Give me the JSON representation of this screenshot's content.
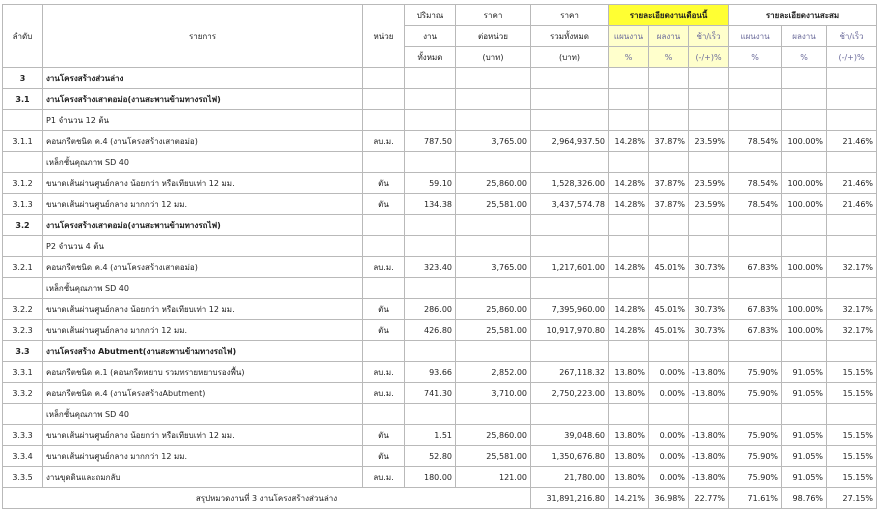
{
  "header": {
    "no": "ลำดับ",
    "item": "รายการ",
    "unit": "หน่วย",
    "qty": [
      "ปริมาณ",
      "งาน",
      "ทั้งหมด"
    ],
    "unit_price": [
      "ราคา",
      "ต่อหน่วย",
      "(บาท)"
    ],
    "total": [
      "ราคา",
      "รวมทั้งหมด",
      "(บาท)"
    ],
    "groups": [
      {
        "title": "รายละเอียดงานเดือนนี้",
        "columns": [
          [
            "แผนงาน",
            "%"
          ],
          [
            "ผลงาน",
            "%"
          ],
          [
            "ช้า/เร็ว",
            "(-/+)%"
          ]
        ]
      },
      {
        "title": "รายละเอียดงานสะสม",
        "columns": [
          [
            "แผนงาน",
            "%"
          ],
          [
            "ผลงาน",
            "%"
          ],
          [
            "ช้า/เร็ว",
            "(-/+)%"
          ]
        ]
      }
    ]
  },
  "rows": [
    {
      "bold": true,
      "cells": [
        "3",
        "งานโครงสร้างส่วนล่าง",
        null,
        null,
        null,
        null,
        null,
        null,
        null,
        null,
        null,
        null
      ]
    },
    {
      "bold": true,
      "cells": [
        "3.1",
        "งานโครงสร้างเสาตอม่อ(งานสะพานข้ามทางรถไฟ)",
        null,
        null,
        null,
        null,
        null,
        null,
        null,
        null,
        null,
        null
      ]
    },
    {
      "cells": [
        null,
        "P1 จำนวน 12 ต้น",
        null,
        null,
        null,
        null,
        null,
        null,
        null,
        null,
        null,
        null
      ]
    },
    {
      "cells": [
        "3.1.1",
        "คอนกรีตชนิด ค.4 (งานโครงสร้างเสาตอม่อ)",
        "ลบ.ม.",
        "787.50",
        "3,765.00",
        "2,964,937.50",
        "14.28%",
        "37.87%",
        "23.59%",
        "78.54%",
        "100.00%",
        "21.46%"
      ]
    },
    {
      "cells": [
        null,
        "เหล็กชั้นคุณภาพ SD 40",
        null,
        null,
        null,
        null,
        null,
        null,
        null,
        null,
        null,
        null
      ]
    },
    {
      "cells": [
        "3.1.2",
        "ขนาดเส้นผ่านศูนย์กลาง น้อยกว่า หรือเทียบเท่า 12 มม.",
        "ตัน",
        "59.10",
        "25,860.00",
        "1,528,326.00",
        "14.28%",
        "37.87%",
        "23.59%",
        "78.54%",
        "100.00%",
        "21.46%"
      ]
    },
    {
      "cells": [
        "3.1.3",
        "ขนาดเส้นผ่านศูนย์กลาง มากกว่า 12 มม.",
        "ตัน",
        "134.38",
        "25,581.00",
        "3,437,574.78",
        "14.28%",
        "37.87%",
        "23.59%",
        "78.54%",
        "100.00%",
        "21.46%"
      ]
    },
    {
      "bold": true,
      "cells": [
        "3.2",
        "งานโครงสร้างเสาตอม่อ(งานสะพานข้ามทางรถไฟ)",
        null,
        null,
        null,
        null,
        null,
        null,
        null,
        null,
        null,
        null
      ]
    },
    {
      "cells": [
        null,
        "P2 จำนวน 4 ต้น",
        null,
        null,
        null,
        null,
        null,
        null,
        null,
        null,
        null,
        null
      ]
    },
    {
      "cells": [
        "3.2.1",
        "คอนกรีตชนิด ค.4 (งานโครงสร้างเสาตอม่อ)",
        "ลบ.ม.",
        "323.40",
        "3,765.00",
        "1,217,601.00",
        "14.28%",
        "45.01%",
        "30.73%",
        "67.83%",
        "100.00%",
        "32.17%"
      ]
    },
    {
      "cells": [
        null,
        "เหล็กชั้นคุณภาพ SD 40",
        null,
        null,
        null,
        null,
        null,
        null,
        null,
        null,
        null,
        null
      ]
    },
    {
      "cells": [
        "3.2.2",
        "ขนาดเส้นผ่านศูนย์กลาง น้อยกว่า หรือเทียบเท่า 12 มม.",
        "ตัน",
        "286.00",
        "25,860.00",
        "7,395,960.00",
        "14.28%",
        "45.01%",
        "30.73%",
        "67.83%",
        "100.00%",
        "32.17%"
      ]
    },
    {
      "cells": [
        "3.2.3",
        "ขนาดเส้นผ่านศูนย์กลาง มากกว่า 12 มม.",
        "ตัน",
        "426.80",
        "25,581.00",
        "10,917,970.80",
        "14.28%",
        "45.01%",
        "30.73%",
        "67.83%",
        "100.00%",
        "32.17%"
      ]
    },
    {
      "bold": true,
      "cells": [
        "3.3",
        "งานโครงสร้าง Abutment(งานสะพานข้ามทางรถไฟ)",
        null,
        null,
        null,
        null,
        null,
        null,
        null,
        null,
        null,
        null
      ]
    },
    {
      "cells": [
        "3.3.1",
        "คอนกรีตชนิด ค.1 (คอนกรีตหยาบ รวมทรายหยาบรองพื้น)",
        "ลบ.ม.",
        "93.66",
        "2,852.00",
        "267,118.32",
        "13.80%",
        "0.00%",
        "-13.80%",
        "75.90%",
        "91.05%",
        "15.15%"
      ]
    },
    {
      "cells": [
        "3.3.2",
        "คอนกรีตชนิด ค.4 (งานโครงสร้างAbutment)",
        "ลบ.ม.",
        "741.30",
        "3,710.00",
        "2,750,223.00",
        "13.80%",
        "0.00%",
        "-13.80%",
        "75.90%",
        "91.05%",
        "15.15%"
      ]
    },
    {
      "cells": [
        null,
        "เหล็กชั้นคุณภาพ SD 40",
        null,
        null,
        null,
        null,
        null,
        null,
        null,
        null,
        null,
        null
      ]
    },
    {
      "cells": [
        "3.3.3",
        "ขนาดเส้นผ่านศูนย์กลาง น้อยกว่า หรือเทียบเท่า 12 มม.",
        "ตัน",
        "1.51",
        "25,860.00",
        "39,048.60",
        "13.80%",
        "0.00%",
        "-13.80%",
        "75.90%",
        "91.05%",
        "15.15%"
      ]
    },
    {
      "cells": [
        "3.3.4",
        "ขนาดเส้นผ่านศูนย์กลาง มากกว่า 12 มม.",
        "ตัน",
        "52.80",
        "25,581.00",
        "1,350,676.80",
        "13.80%",
        "0.00%",
        "-13.80%",
        "75.90%",
        "91.05%",
        "15.15%"
      ]
    },
    {
      "cells": [
        "3.3.5",
        "งานขุดดินและถมกลับ",
        "ลบ.ม.",
        "180.00",
        "121.00",
        "21,780.00",
        "13.80%",
        "0.00%",
        "-13.80%",
        "75.90%",
        "91.05%",
        "15.15%"
      ]
    }
  ],
  "summary": {
    "label": "สรุปหมวดงานที่ 3 งานโครงสร้างส่วนล่าง",
    "total": "31,891,216.80",
    "percents": [
      "14.21%",
      "36.98%",
      "22.77%",
      "71.61%",
      "98.76%",
      "27.15%"
    ]
  }
}
